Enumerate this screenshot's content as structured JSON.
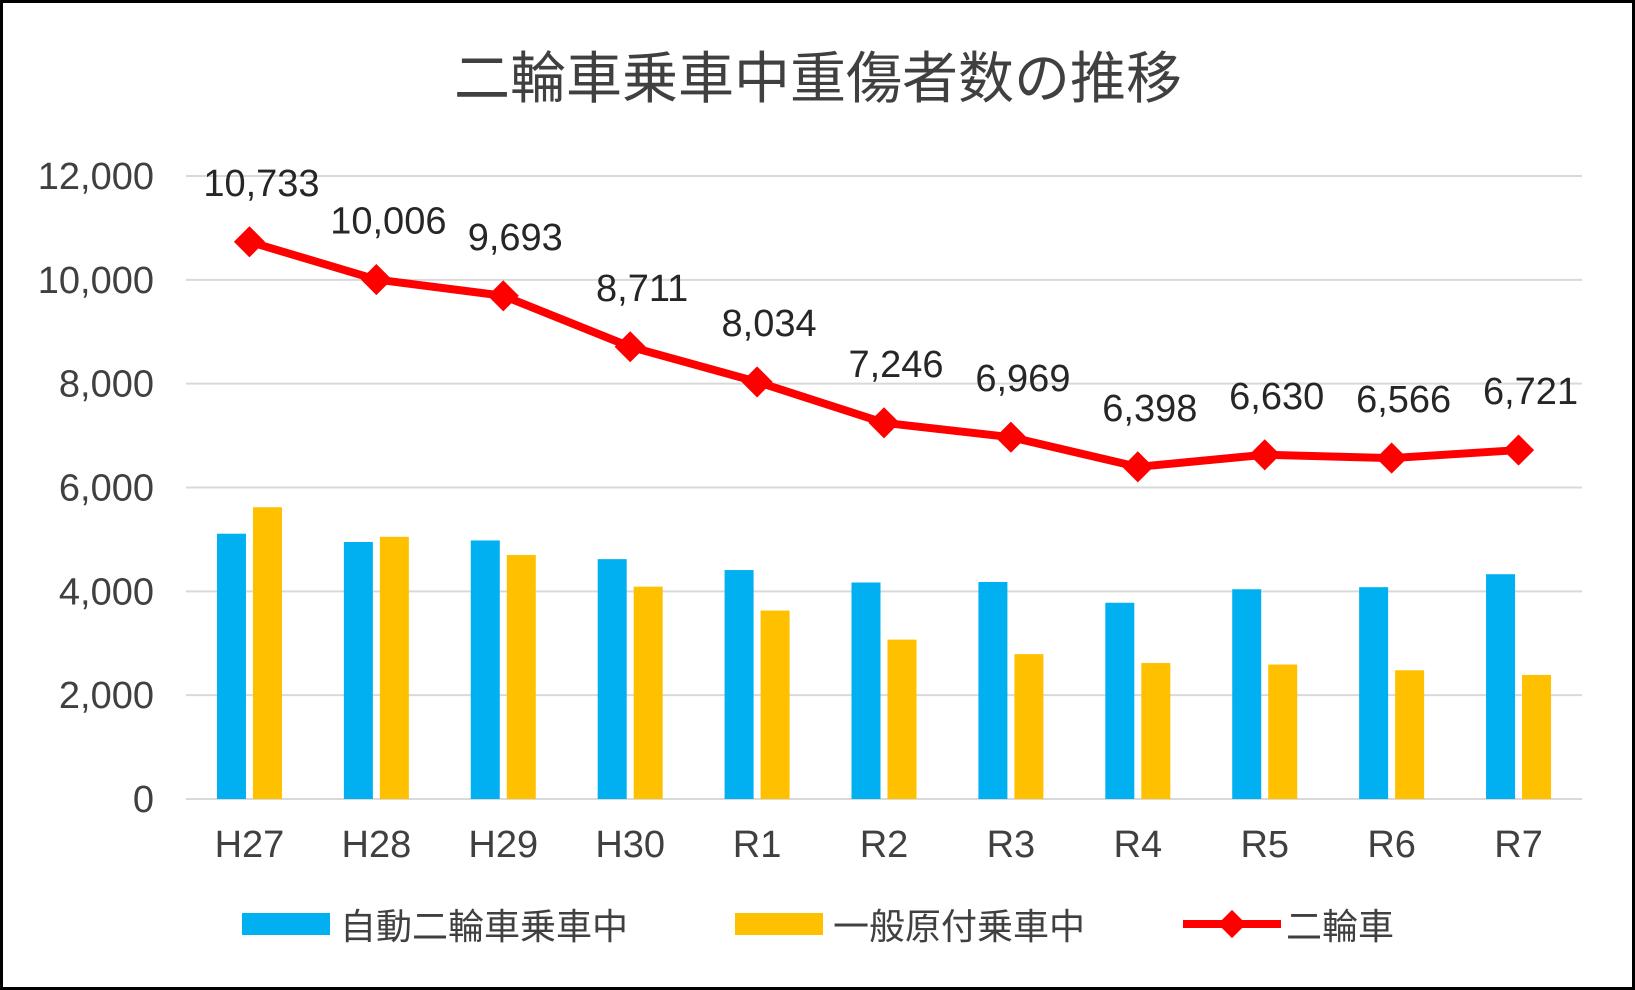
{
  "chart_data": {
    "type": "bar",
    "title": "二輪車乗車中重傷者数の推移",
    "categories": [
      "H27",
      "H28",
      "H29",
      "H30",
      "R1",
      "R2",
      "R3",
      "R4",
      "R5",
      "R6",
      "R7"
    ],
    "ylim": [
      0,
      12000
    ],
    "yticks": [
      "0",
      "2,000",
      "4,000",
      "6,000",
      "8,000",
      "10,000",
      "12,000"
    ],
    "ytick_values": [
      0,
      2000,
      4000,
      6000,
      8000,
      10000,
      12000
    ],
    "grid": true,
    "legend_position": "bottom",
    "series": [
      {
        "name": "自動二輪車乗車中",
        "type": "bar",
        "color": "#00b0f0",
        "values": [
          5110,
          4950,
          4980,
          4620,
          4410,
          4170,
          4180,
          3780,
          4040,
          4080,
          4330
        ]
      },
      {
        "name": "一般原付乗車中",
        "type": "bar",
        "color": "#ffc000",
        "values": [
          5620,
          5050,
          4700,
          4090,
          3630,
          3070,
          2790,
          2620,
          2590,
          2480,
          2390
        ]
      },
      {
        "name": "二輪車",
        "type": "line",
        "color": "#ff0000",
        "values": [
          10733,
          10006,
          9693,
          8711,
          8034,
          7246,
          6969,
          6398,
          6630,
          6566,
          6721
        ],
        "labels": [
          "10,733",
          "10,006",
          "9,693",
          "8,711",
          "8,034",
          "7,246",
          "6,969",
          "6,398",
          "6,630",
          "6,566",
          "6,721"
        ]
      }
    ]
  }
}
